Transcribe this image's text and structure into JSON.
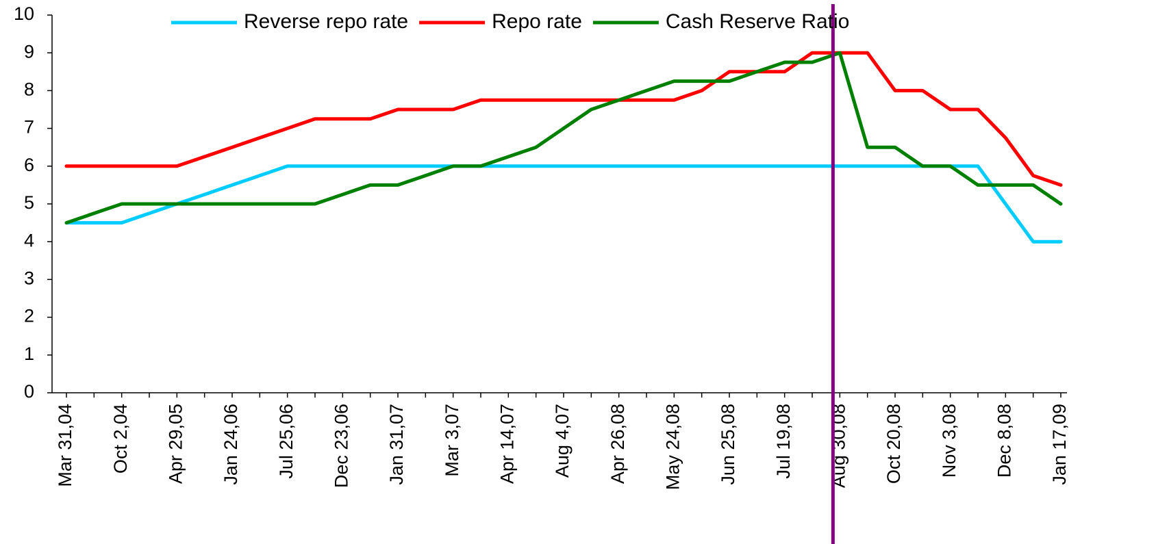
{
  "chart_data": {
    "type": "line",
    "categories": [
      "Mar 31,04",
      null,
      "Oct 2,04",
      null,
      "Apr 29,05",
      null,
      "Jan 24,06",
      null,
      "Jul 25,06",
      null,
      "Dec 23,06",
      null,
      "Jan 31,07",
      null,
      "Mar 3,07",
      null,
      "Apr 14,07",
      null,
      "Aug 4,07",
      null,
      "Apr 26,08",
      null,
      "May 24,08",
      null,
      "Jun 25,08",
      null,
      "Jul 19,08",
      null,
      "Aug 30,08",
      null,
      "Oct 20,08",
      null,
      "Nov 3,08",
      null,
      "Dec 8,08",
      null,
      "Jan 17,09"
    ],
    "series": [
      {
        "name": "Reverse repo rate",
        "color": "#00ccff",
        "values": [
          4.5,
          4.5,
          4.5,
          4.75,
          5,
          5.25,
          5.5,
          5.75,
          6,
          6,
          6,
          6,
          6,
          6,
          6,
          6,
          6,
          6,
          6,
          6,
          6,
          6,
          6,
          6,
          6,
          6,
          6,
          6,
          6,
          6,
          6,
          6,
          6,
          6,
          5,
          4,
          4
        ]
      },
      {
        "name": "Repo rate",
        "color": "#ff0000",
        "values": [
          6,
          6,
          6,
          6,
          6,
          6.25,
          6.5,
          6.75,
          7,
          7.25,
          7.25,
          7.25,
          7.5,
          7.5,
          7.5,
          7.75,
          7.75,
          7.75,
          7.75,
          7.75,
          7.75,
          7.75,
          7.75,
          8,
          8.5,
          8.5,
          8.5,
          9,
          9,
          9,
          8,
          8,
          7.5,
          7.5,
          6.75,
          5.75,
          5.5
        ]
      },
      {
        "name": "Cash Reserve Ratio",
        "color": "#008000",
        "values": [
          4.5,
          4.75,
          5,
          5,
          5,
          5,
          5,
          5,
          5,
          5,
          5.25,
          5.5,
          5.5,
          5.75,
          6,
          6,
          6.25,
          6.5,
          7,
          7.5,
          7.75,
          8,
          8.25,
          8.25,
          8.25,
          8.5,
          8.75,
          8.75,
          9,
          6.5,
          6.5,
          6,
          6,
          5.5,
          5.5,
          5.5,
          5
        ]
      }
    ],
    "annotation": {
      "x": "Aug 30,08",
      "color": "#800080"
    },
    "ylim": [
      0,
      10
    ],
    "yticks": [
      0,
      1,
      2,
      3,
      4,
      5,
      6,
      7,
      8,
      9,
      10
    ],
    "grid": false,
    "legend": "top"
  }
}
